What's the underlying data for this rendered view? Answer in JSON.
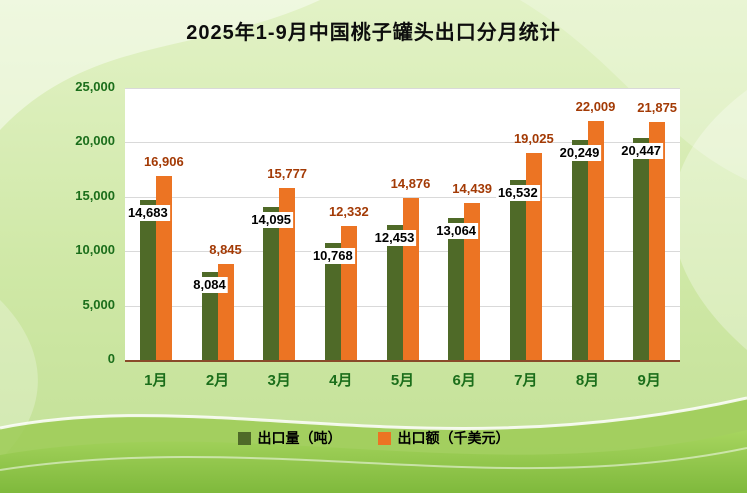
{
  "title": "2025年1-9月中国桃子罐头出口分月统计",
  "colors": {
    "volume_bar": "#4F6A28",
    "value_bar": "#EC7423",
    "volume_label": "#000000",
    "value_label": "#A33A05",
    "axis_text": "#1B6E1B",
    "gridline": "#D9D9D9",
    "baseline": "#8A4A2A",
    "plot_bg": "#FFFFFF"
  },
  "chart_data": {
    "type": "bar",
    "title": "2025年1-9月中国桃子罐头出口分月统计",
    "categories": [
      "1月",
      "2月",
      "3月",
      "4月",
      "5月",
      "6月",
      "7月",
      "8月",
      "9月"
    ],
    "series": [
      {
        "name": "出口量（吨）",
        "color": "#4F6A28",
        "values": [
          14683,
          8084,
          14095,
          10768,
          12453,
          13064,
          16532,
          20249,
          20447
        ]
      },
      {
        "name": "出口额（千美元）",
        "color": "#EC7423",
        "values": [
          16906,
          8845,
          15777,
          12332,
          14876,
          14439,
          19025,
          22009,
          21875
        ]
      }
    ],
    "data_labels": {
      "出口量（吨）": [
        "14,683",
        "8,084",
        "14,095",
        "10,768",
        "12,453",
        "13,064",
        "16,532",
        "20,249",
        "20,447"
      ],
      "出口额（千美元）": [
        "16,906",
        "8,845",
        "15,777",
        "12,332",
        "14,876",
        "14,439",
        "19,025",
        "22,009",
        "21,875"
      ]
    },
    "ylim": [
      0,
      25000
    ],
    "ytick_interval": 5000,
    "yticks": [
      "0",
      "5,000",
      "10,000",
      "15,000",
      "20,000",
      "25,000"
    ],
    "grid": true,
    "legend_position": "bottom"
  },
  "legend": {
    "items": [
      {
        "label": "出口量（吨）",
        "color": "#4F6A28"
      },
      {
        "label": "出口额（千美元）",
        "color": "#EC7423"
      }
    ]
  }
}
